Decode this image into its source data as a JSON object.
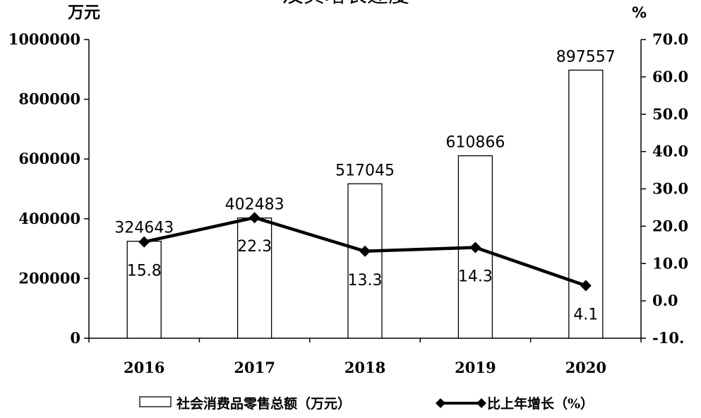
{
  "chart_data": {
    "type": "bar",
    "title": "及其增长速度",
    "categories": [
      "2016",
      "2017",
      "2018",
      "2019",
      "2020"
    ],
    "series": [
      {
        "name": "社会消费品零售总额（万元）",
        "type": "bar",
        "axis": "left",
        "values": [
          324643,
          402483,
          517045,
          610866,
          897557
        ],
        "labels": [
          "324643",
          "402483",
          "517045",
          "610866",
          "897557"
        ]
      },
      {
        "name": "比上年增长（%）",
        "type": "line",
        "axis": "right",
        "values": [
          15.8,
          22.3,
          13.3,
          14.3,
          4.1
        ],
        "labels": [
          "15.8",
          "22.3",
          "13.3",
          "14.3",
          "4.1"
        ]
      }
    ],
    "y_left": {
      "unit": "万元",
      "range": [
        0,
        1000000
      ],
      "ticks": [
        0,
        200000,
        400000,
        600000,
        800000,
        1000000
      ],
      "tick_labels": [
        "0",
        "200000",
        "400000",
        "600000",
        "800000",
        "1000000"
      ]
    },
    "y_right": {
      "unit": "%",
      "range": [
        -10,
        70
      ],
      "ticks": [
        -10,
        0,
        10,
        20,
        30,
        40,
        50,
        60,
        70
      ],
      "tick_labels": [
        "-10.",
        "0.0",
        "10.0",
        "20.0",
        "30.0",
        "40.0",
        "50.0",
        "60.0",
        "70.0"
      ]
    },
    "grid": false,
    "legend_position": "bottom"
  }
}
